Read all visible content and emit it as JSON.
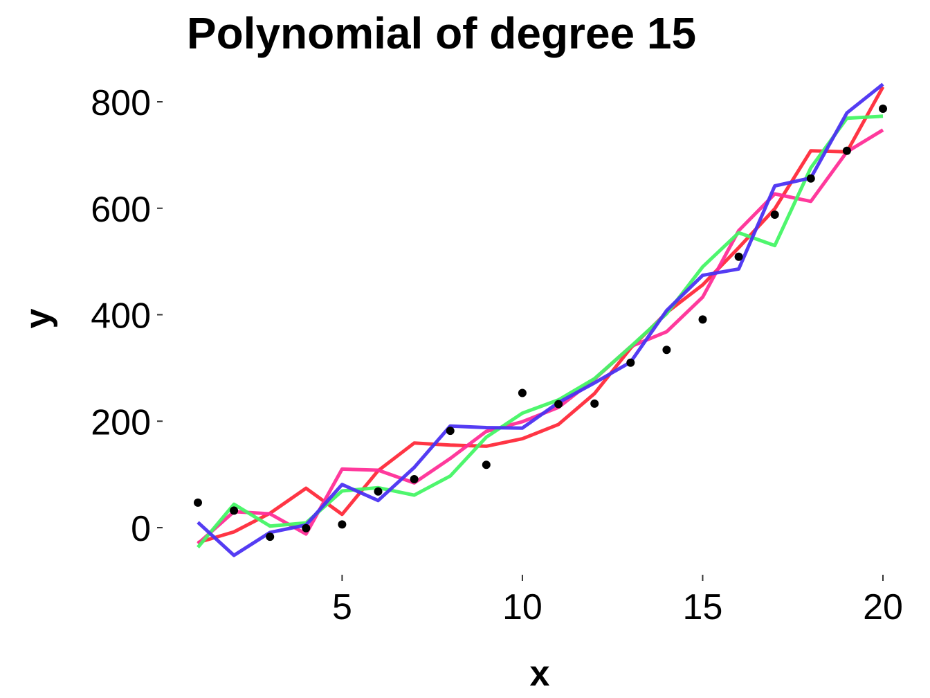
{
  "chart_data": {
    "type": "line",
    "title": "Polynomial of degree 15",
    "xlabel": "x",
    "ylabel": "y",
    "x": [
      1,
      2,
      3,
      4,
      5,
      6,
      7,
      8,
      9,
      10,
      11,
      12,
      13,
      14,
      15,
      16,
      17,
      18,
      19,
      20
    ],
    "xlim": [
      1,
      20
    ],
    "ylim": [
      -80,
      830
    ],
    "xticks": [
      5,
      10,
      15,
      20
    ],
    "yticks": [
      0,
      200,
      400,
      600,
      800
    ],
    "xtick_labels": [
      "5",
      "10",
      "15",
      "20"
    ],
    "ytick_labels": [
      "0",
      "200",
      "400",
      "600",
      "800"
    ],
    "grid": false,
    "legend": "none",
    "points": {
      "color": "#000000",
      "values": [
        47,
        32,
        -17,
        -1,
        6,
        68,
        91,
        182,
        118,
        253,
        232,
        233,
        310,
        334,
        391,
        509,
        588,
        656,
        708,
        787
      ]
    },
    "series": [
      {
        "color": "#ff2a3a",
        "values": [
          -28,
          -8,
          27,
          74,
          25,
          107,
          159,
          155,
          153,
          167,
          194,
          252,
          337,
          404,
          456,
          526,
          599,
          708,
          706,
          828
        ]
      },
      {
        "color": "#ff2e97",
        "values": [
          -30,
          30,
          26,
          -12,
          110,
          108,
          84,
          130,
          181,
          199,
          226,
          279,
          340,
          368,
          433,
          558,
          627,
          613,
          706,
          747
        ]
      },
      {
        "color": "#45f565",
        "values": [
          -37,
          44,
          3,
          9,
          69,
          75,
          61,
          97,
          170,
          215,
          240,
          280,
          340,
          402,
          490,
          554,
          530,
          676,
          769,
          773
        ]
      },
      {
        "color": "#4b32f2",
        "values": [
          10,
          -52,
          -9,
          5,
          81,
          51,
          113,
          191,
          188,
          187,
          235,
          272,
          311,
          408,
          474,
          486,
          642,
          657,
          779,
          833
        ]
      }
    ]
  }
}
